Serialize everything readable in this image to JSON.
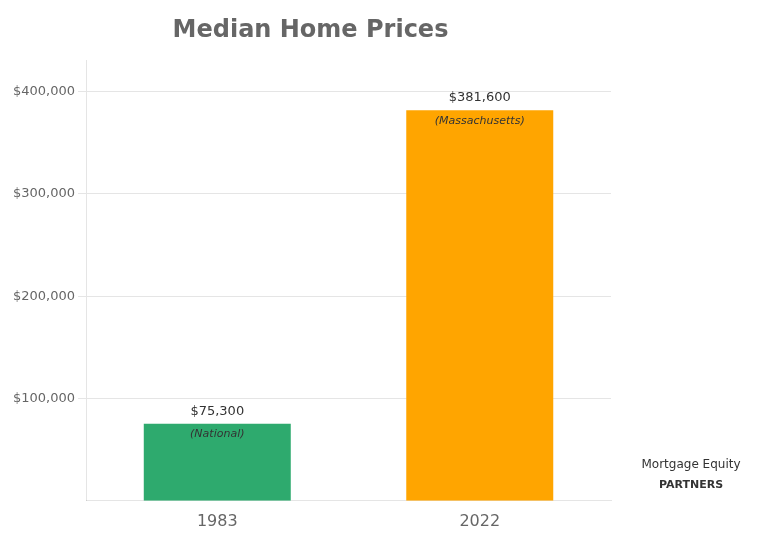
{
  "chart_data": {
    "type": "bar",
    "title": "Median Home Prices",
    "categories": [
      "1983",
      "2022"
    ],
    "values": [
      75300,
      381600
    ],
    "colors": [
      "#2eaa6e",
      "#FFA500"
    ],
    "data_labels": true,
    "value_labels": [
      "$75,300",
      "$381,600"
    ],
    "ylim": [
      0,
      430000
    ],
    "yticks": [
      {
        "value": 100000,
        "label": "$100,000"
      },
      {
        "value": 200000,
        "label": "$200,000"
      },
      {
        "value": 300000,
        "label": "$300,000"
      },
      {
        "value": 400000,
        "label": "$400,000"
      }
    ],
    "grid": true,
    "annotations": [
      {
        "text": "(National)",
        "x": "1983",
        "y": 75300
      },
      {
        "text": "(Massachusetts)",
        "x": "2022",
        "y": 381600
      },
      {
        "text": "Mortgage Equity"
      },
      {
        "text": "PARTNERS"
      }
    ]
  }
}
